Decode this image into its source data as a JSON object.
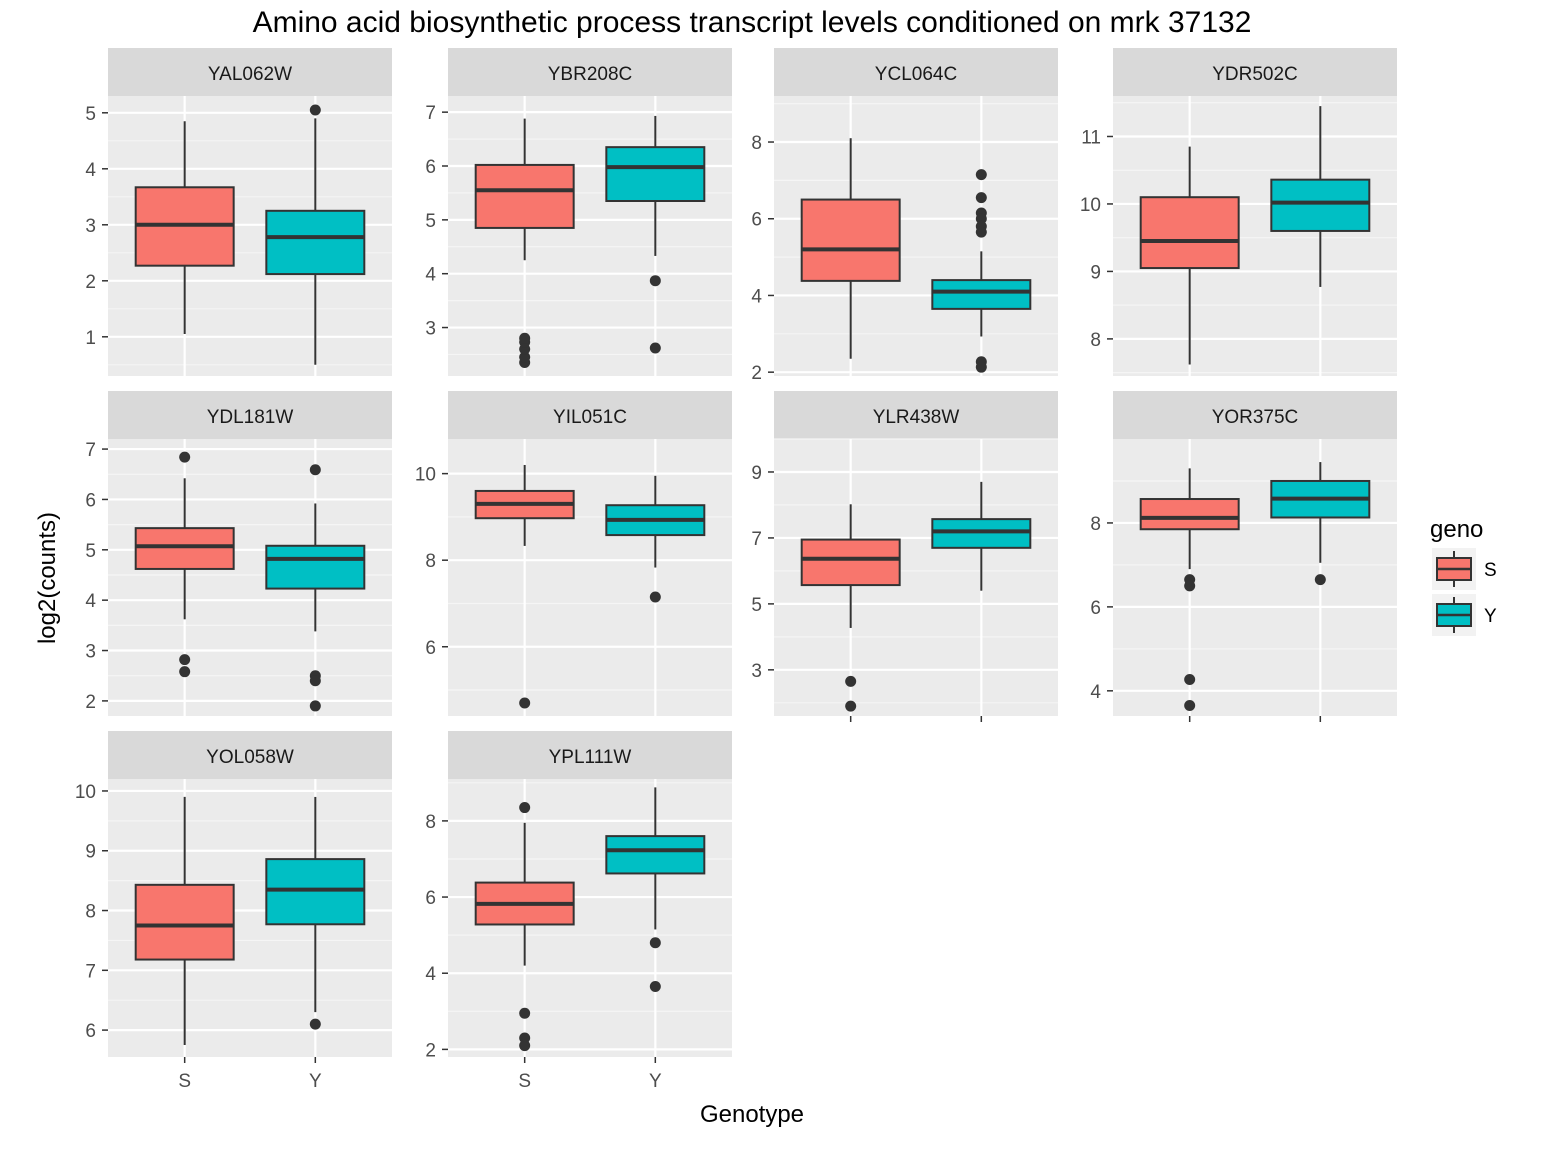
{
  "chart_data": {
    "type": "boxplot",
    "title": "Amino acid biosynthetic process transcript levels conditioned on mrk 37132",
    "xlabel": "Genotype",
    "ylabel": "log2(counts)",
    "categories": [
      "S",
      "Y"
    ],
    "legend": {
      "title": "geno",
      "position": "right",
      "entries": [
        {
          "label": "S",
          "color": "#F8766D"
        },
        {
          "label": "Y",
          "color": "#00BFC4"
        }
      ]
    },
    "grid": true,
    "panels": [
      {
        "name": "YAL062W",
        "ylim": [
          0.3,
          5.3
        ],
        "yticks": [
          1,
          2,
          3,
          4,
          5
        ],
        "boxes": [
          {
            "group": "S",
            "lower": 1.05,
            "q1": 2.27,
            "median": 3.0,
            "q3": 3.67,
            "upper": 4.85,
            "outliers": []
          },
          {
            "group": "Y",
            "lower": 0.5,
            "q1": 2.12,
            "median": 2.78,
            "q3": 3.25,
            "upper": 4.9,
            "outliers": [
              5.05
            ]
          }
        ]
      },
      {
        "name": "YBR208C",
        "ylim": [
          2.1,
          7.3
        ],
        "yticks": [
          3,
          4,
          5,
          6,
          7
        ],
        "boxes": [
          {
            "group": "S",
            "lower": 4.25,
            "q1": 4.85,
            "median": 5.55,
            "q3": 6.02,
            "upper": 6.88,
            "outliers": [
              2.35,
              2.45,
              2.6,
              2.73,
              2.8
            ]
          },
          {
            "group": "Y",
            "lower": 4.33,
            "q1": 5.35,
            "median": 5.98,
            "q3": 6.35,
            "upper": 6.93,
            "outliers": [
              3.87,
              2.62
            ]
          }
        ]
      },
      {
        "name": "YCL064C",
        "ylim": [
          1.9,
          9.2
        ],
        "yticks": [
          2,
          4,
          6,
          8
        ],
        "boxes": [
          {
            "group": "S",
            "lower": 2.35,
            "q1": 4.38,
            "median": 5.2,
            "q3": 6.5,
            "upper": 8.1,
            "outliers": []
          },
          {
            "group": "Y",
            "lower": 2.93,
            "q1": 3.65,
            "median": 4.1,
            "q3": 4.4,
            "upper": 5.15,
            "outliers": [
              7.15,
              6.55,
              6.15,
              6.0,
              5.8,
              5.65,
              2.27,
              2.13
            ]
          }
        ]
      },
      {
        "name": "YDR502C",
        "ylim": [
          7.45,
          11.6
        ],
        "yticks": [
          8,
          9,
          10,
          11
        ],
        "boxes": [
          {
            "group": "S",
            "lower": 7.62,
            "q1": 9.05,
            "median": 9.45,
            "q3": 10.1,
            "upper": 10.85,
            "outliers": []
          },
          {
            "group": "Y",
            "lower": 8.77,
            "q1": 9.6,
            "median": 10.02,
            "q3": 10.36,
            "upper": 11.45,
            "outliers": []
          }
        ]
      },
      {
        "name": "YDL181W",
        "ylim": [
          1.7,
          7.2
        ],
        "yticks": [
          2,
          3,
          4,
          5,
          6,
          7
        ],
        "boxes": [
          {
            "group": "S",
            "lower": 3.62,
            "q1": 4.62,
            "median": 5.07,
            "q3": 5.43,
            "upper": 6.42,
            "outliers": [
              6.84,
              2.82,
              2.58
            ]
          },
          {
            "group": "Y",
            "lower": 3.38,
            "q1": 4.23,
            "median": 4.82,
            "q3": 5.08,
            "upper": 5.92,
            "outliers": [
              6.59,
              2.5,
              2.4,
              1.9
            ]
          }
        ]
      },
      {
        "name": "YIL051C",
        "ylim": [
          4.4,
          10.8
        ],
        "yticks": [
          6,
          8,
          10
        ],
        "boxes": [
          {
            "group": "S",
            "lower": 8.33,
            "q1": 8.97,
            "median": 9.3,
            "q3": 9.6,
            "upper": 10.2,
            "outliers": [
              4.7
            ]
          },
          {
            "group": "Y",
            "lower": 7.83,
            "q1": 8.58,
            "median": 8.93,
            "q3": 9.27,
            "upper": 9.95,
            "outliers": [
              7.15
            ]
          }
        ]
      },
      {
        "name": "YLR438W",
        "ylim": [
          1.6,
          10.0
        ],
        "yticks": [
          3,
          5,
          7,
          9
        ],
        "boxes": [
          {
            "group": "S",
            "lower": 4.27,
            "q1": 5.57,
            "median": 6.37,
            "q3": 6.95,
            "upper": 8.02,
            "outliers": [
              2.65,
              1.9
            ]
          },
          {
            "group": "Y",
            "lower": 5.4,
            "q1": 6.7,
            "median": 7.2,
            "q3": 7.57,
            "upper": 8.7,
            "outliers": []
          }
        ]
      },
      {
        "name": "YOR375C",
        "ylim": [
          3.4,
          10.0
        ],
        "yticks": [
          4,
          6,
          8
        ],
        "boxes": [
          {
            "group": "S",
            "lower": 6.9,
            "q1": 7.85,
            "median": 8.12,
            "q3": 8.57,
            "upper": 9.3,
            "outliers": [
              6.65,
              6.5,
              4.27,
              3.65
            ]
          },
          {
            "group": "Y",
            "lower": 7.05,
            "q1": 8.13,
            "median": 8.58,
            "q3": 9.0,
            "upper": 9.45,
            "outliers": [
              6.65
            ]
          }
        ]
      },
      {
        "name": "YOL058W",
        "ylim": [
          5.55,
          10.2
        ],
        "yticks": [
          6,
          7,
          8,
          9,
          10
        ],
        "boxes": [
          {
            "group": "S",
            "lower": 5.75,
            "q1": 7.18,
            "median": 7.75,
            "q3": 8.43,
            "upper": 9.9,
            "outliers": []
          },
          {
            "group": "Y",
            "lower": 6.3,
            "q1": 7.77,
            "median": 8.35,
            "q3": 8.86,
            "upper": 9.9,
            "outliers": [
              6.1
            ]
          }
        ]
      },
      {
        "name": "YPL111W",
        "ylim": [
          1.8,
          9.1
        ],
        "yticks": [
          2,
          4,
          6,
          8
        ],
        "boxes": [
          {
            "group": "S",
            "lower": 4.2,
            "q1": 5.28,
            "median": 5.82,
            "q3": 6.38,
            "upper": 7.95,
            "outliers": [
              8.35,
              2.95,
              2.3,
              2.1
            ]
          },
          {
            "group": "Y",
            "lower": 5.15,
            "q1": 6.62,
            "median": 7.23,
            "q3": 7.6,
            "upper": 8.88,
            "outliers": [
              4.8,
              3.65
            ]
          }
        ]
      }
    ]
  }
}
